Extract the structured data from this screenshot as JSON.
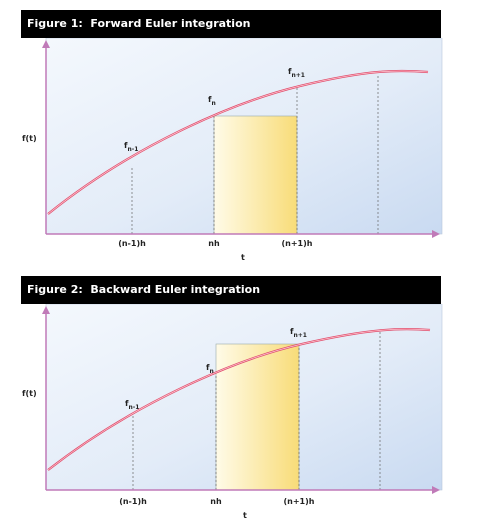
{
  "figures": [
    {
      "title": "Figure 1:  Forward Euler integration",
      "ylabel": "f(t)",
      "xlabel": "t",
      "tick_labels": [
        "(n-1)h",
        "nh",
        "(n+1)h"
      ],
      "point_labels": [
        {
          "base": "f",
          "sub": "n-1"
        },
        {
          "base": "f",
          "sub": "n"
        },
        {
          "base": "f",
          "sub": "n+1"
        }
      ]
    },
    {
      "title": "Figure 2:  Backward Euler integration",
      "ylabel": "f(t)",
      "xlabel": "t",
      "tick_labels": [
        "(n-1)h",
        "nh",
        "(n+1)h"
      ],
      "point_labels": [
        {
          "base": "f",
          "sub": "n-1"
        },
        {
          "base": "f",
          "sub": "n"
        },
        {
          "base": "f",
          "sub": "n+1"
        }
      ]
    }
  ],
  "colors": {
    "title_bg": "#000000",
    "axis": "#c07ab8",
    "curve": "#e0506e",
    "rect_fill": "#fbe79a",
    "plot_bg": "#dbe7f6"
  }
}
